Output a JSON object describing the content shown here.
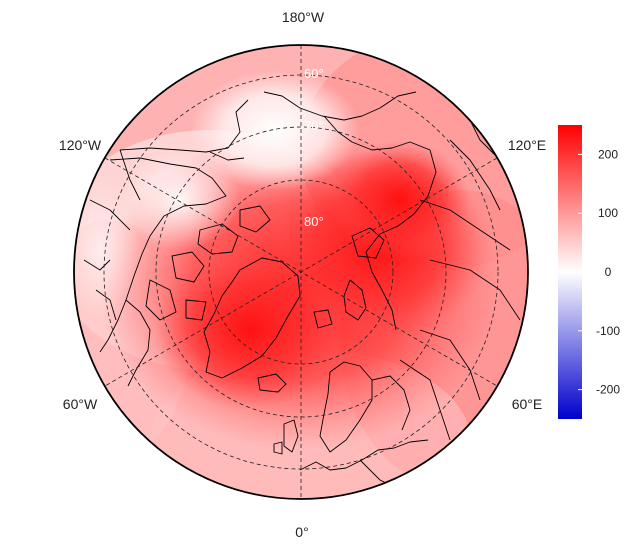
{
  "map": {
    "projection": "north-polar-stereographic",
    "center": "North Pole",
    "longitude_labels": {
      "top": "180°W",
      "upper_left": "120°W",
      "upper_right": "120°E",
      "lower_left": "60°W",
      "lower_right": "60°E",
      "bottom": "0°"
    },
    "latitude_labels": [
      "60°",
      "70°",
      "80°"
    ],
    "field": {
      "description_values": "anomaly field, strong positive over central Arctic",
      "max_region": "central Arctic / Greenland / Barents Sea",
      "near_zero_region": "Bering Strait / Chukchi"
    }
  },
  "colorbar": {
    "ticks": [
      "200",
      "100",
      "0",
      "-100",
      "-200"
    ],
    "tick_values": [
      200,
      100,
      0,
      -100,
      -200
    ],
    "range": [
      -250,
      250
    ],
    "colors": {
      "low": "#0000cc",
      "mid": "#ffffff",
      "high": "#ff0000"
    }
  }
}
